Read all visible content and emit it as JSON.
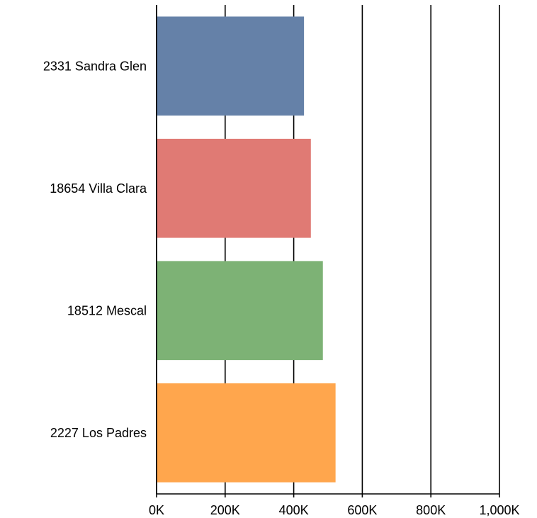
{
  "chart_data": {
    "type": "bar",
    "orientation": "horizontal",
    "title": "",
    "xlabel": "",
    "ylabel": "",
    "xlim": [
      0,
      1000000
    ],
    "grid": true,
    "legend": "none",
    "x_ticks": [
      {
        "value": 0,
        "label": "0K"
      },
      {
        "value": 200000,
        "label": "200K"
      },
      {
        "value": 400000,
        "label": "400K"
      },
      {
        "value": 600000,
        "label": "600K"
      },
      {
        "value": 800000,
        "label": "800K"
      },
      {
        "value": 1000000,
        "label": "1,000K"
      }
    ],
    "categories": [
      "2331 Sandra Glen",
      "18654 Villa Clara",
      "18512 Mescal",
      "2227 Los Padres"
    ],
    "values": [
      430000,
      450000,
      485000,
      522000
    ],
    "colors": [
      "#6581a8",
      "#e07a74",
      "#7db275",
      "#ffa64d"
    ]
  }
}
